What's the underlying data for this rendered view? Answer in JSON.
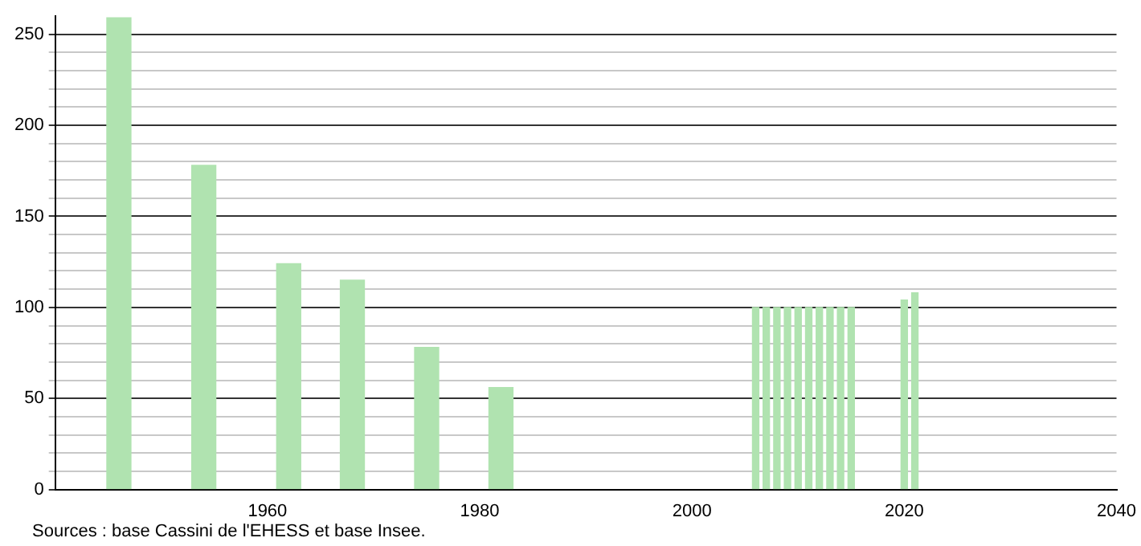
{
  "chart_data": {
    "type": "bar",
    "x": [
      1946,
      1954,
      1962,
      1968,
      1975,
      1982,
      2006,
      2007,
      2008,
      2009,
      2010,
      2011,
      2012,
      2013,
      2014,
      2015,
      2020,
      2021
    ],
    "values": [
      259,
      178,
      124,
      115,
      78,
      56,
      100,
      100,
      100,
      100,
      100,
      100,
      100,
      100,
      100,
      100,
      104,
      108
    ],
    "color": "#b0e3b0",
    "xlim": [
      1940,
      2040
    ],
    "xticks": [
      1960,
      1980,
      2000,
      2020,
      2040
    ],
    "ylim": [
      0,
      260
    ],
    "yticks": [
      0,
      {
        "value": 10,
        "label": null
      },
      {
        "value": 20,
        "label": null
      },
      {
        "value": 30,
        "label": null
      },
      {
        "value": 40,
        "label": null
      },
      50,
      {
        "value": 60,
        "label": null
      },
      {
        "value": 70,
        "label": null
      },
      {
        "value": 80,
        "label": null
      },
      {
        "value": 90,
        "label": null
      },
      100,
      {
        "value": 110,
        "label": null
      },
      {
        "value": 120,
        "label": null
      },
      {
        "value": 130,
        "label": null
      },
      {
        "value": 140,
        "label": null
      },
      150,
      {
        "value": 160,
        "label": null
      },
      {
        "value": 170,
        "label": null
      },
      {
        "value": 180,
        "label": null
      },
      {
        "value": 190,
        "label": null
      },
      200,
      {
        "value": 210,
        "label": null
      },
      {
        "value": 220,
        "label": null
      },
      {
        "value": 230,
        "label": null
      },
      {
        "value": 240,
        "label": null
      },
      250
    ],
    "grid": "y",
    "legend": false,
    "annotations": [
      "Sources : base Cassini de l'EHESS et base Insee."
    ]
  }
}
